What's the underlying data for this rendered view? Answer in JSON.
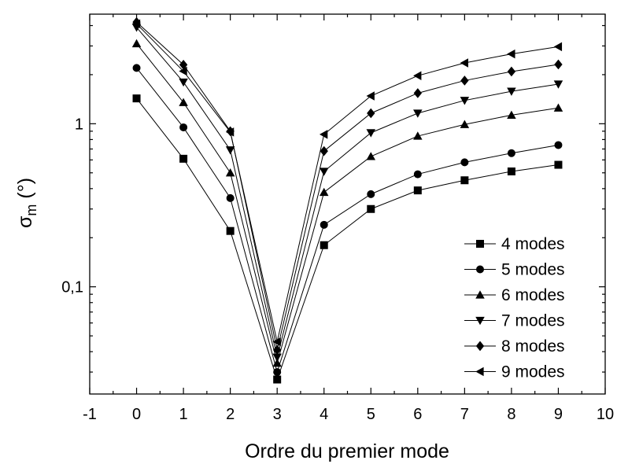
{
  "chart_data": {
    "type": "line",
    "title": "",
    "xlabel": "Ordre du premier mode",
    "ylabel": "σ",
    "ylabel_subscript": "m",
    "ylabel_suffix": " (°)",
    "xlim": [
      -1,
      10
    ],
    "ylim": [
      0.022,
      4.7
    ],
    "yscale": "log",
    "grid": false,
    "legend_position": "lower-right",
    "x_ticks": [
      {
        "value": -1,
        "label": "-1"
      },
      {
        "value": 0,
        "label": "0"
      },
      {
        "value": 1,
        "label": "1"
      },
      {
        "value": 2,
        "label": "2"
      },
      {
        "value": 3,
        "label": "3"
      },
      {
        "value": 4,
        "label": "4"
      },
      {
        "value": 5,
        "label": "5"
      },
      {
        "value": 6,
        "label": "6"
      },
      {
        "value": 7,
        "label": "7"
      },
      {
        "value": 8,
        "label": "8"
      },
      {
        "value": 9,
        "label": "9"
      },
      {
        "value": 10,
        "label": "10"
      }
    ],
    "y_ticks": [
      {
        "value": 0.1,
        "label": "0,1"
      },
      {
        "value": 1,
        "label": "1"
      }
    ],
    "x": [
      0,
      1,
      2,
      3,
      4,
      5,
      6,
      7,
      8,
      9
    ],
    "series": [
      {
        "name": "4 modes",
        "marker": "square",
        "values": [
          1.43,
          0.61,
          0.22,
          0.027,
          0.18,
          0.3,
          0.39,
          0.45,
          0.51,
          0.56
        ]
      },
      {
        "name": "5 modes",
        "marker": "circle",
        "values": [
          2.2,
          0.95,
          0.35,
          0.03,
          0.24,
          0.37,
          0.49,
          0.58,
          0.66,
          0.74
        ]
      },
      {
        "name": "6 modes",
        "marker": "triangle-up",
        "values": [
          3.1,
          1.35,
          0.5,
          0.034,
          0.38,
          0.63,
          0.84,
          0.99,
          1.13,
          1.25
        ]
      },
      {
        "name": "7 modes",
        "marker": "triangle-down",
        "values": [
          3.9,
          1.8,
          0.69,
          0.037,
          0.51,
          0.88,
          1.16,
          1.39,
          1.58,
          1.75
        ]
      },
      {
        "name": "8 modes",
        "marker": "diamond",
        "values": [
          4.2,
          2.3,
          0.9,
          0.041,
          0.68,
          1.16,
          1.54,
          1.84,
          2.09,
          2.31
        ]
      },
      {
        "name": "9 modes",
        "marker": "triangle-left",
        "values": [
          4.1,
          2.1,
          0.89,
          0.046,
          0.86,
          1.48,
          1.97,
          2.36,
          2.68,
          2.97
        ]
      }
    ]
  }
}
